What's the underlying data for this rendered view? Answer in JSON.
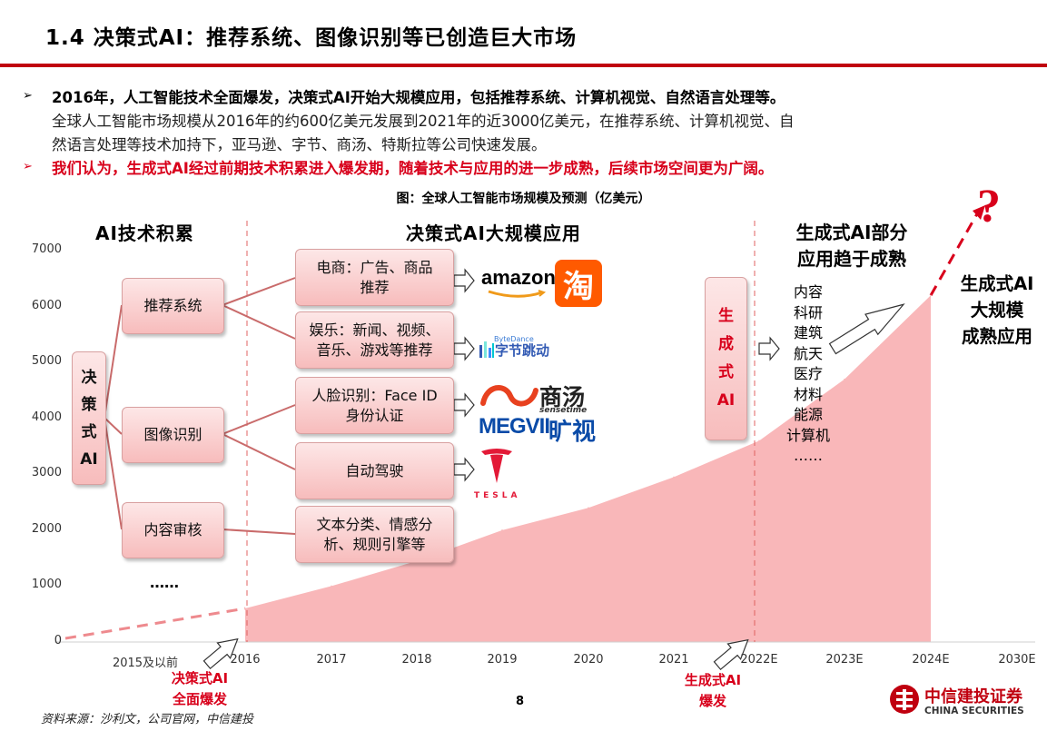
{
  "header": {
    "title": "1.4 决策式AI：推荐系统、图像识别等已创造巨大市场"
  },
  "bullets": {
    "b1_bold": "2016年，人工智能技术全面爆发，决策式AI开始大规模应用，包括推荐系统、计算机视觉、自然语言处理等。",
    "b1_line2": "全球人工智能市场规模从2016年的约600亿美元发展到2021年的近3000亿美元，在推荐系统、计算机视觉、自",
    "b1_line3": "然语言处理等技术加持下，亚马逊、字节、商汤、特斯拉等公司快速发展。",
    "b2_red": "我们认为，生成式AI经过前期技术积累进入爆发期，随着技术与应用的进一步成熟，后续市场空间更为广阔。",
    "marker": "➢"
  },
  "chart_caption": "图：全球人工智能市场规模及预测（亿美元）",
  "chart_data": {
    "type": "area",
    "categories": [
      "2015及以前",
      "2016",
      "2017",
      "2018",
      "2019",
      "2020",
      "2021",
      "2022E",
      "2023E",
      "2024E",
      "2030E"
    ],
    "values": [
      0,
      600,
      1000,
      1450,
      2000,
      2400,
      2950,
      3600,
      4700,
      6200,
      null
    ],
    "yticks": [
      0,
      1000,
      2000,
      3000,
      4000,
      5000,
      6000,
      7000
    ],
    "ylim": [
      0,
      7000
    ]
  },
  "headings": {
    "ai_accum": "AI技术积累",
    "decision_scale": "决策式AI大规模应用",
    "gen_partial_1": "生成式AI部分",
    "gen_partial_2": "应用趋于成熟",
    "gen_mature_1": "生成式AI",
    "gen_mature_2": "大规模",
    "gen_mature_3": "成熟应用"
  },
  "boxes": {
    "decision_ai": [
      "决",
      "策",
      "式",
      "AI"
    ],
    "recommend": "推荐系统",
    "image": "图像识别",
    "content": "内容审核",
    "ellipsis": "……",
    "ecommerce_1": "电商：广告、商品",
    "ecommerce_2": "推荐",
    "entertainment_1": "娱乐：新闻、视频、",
    "entertainment_2": "音乐、游戏等推荐",
    "face_1": "人脸识别：Face ID",
    "face_2": "身份认证",
    "autodrive": "自动驾驶",
    "text_1": "文本分类、情感分",
    "text_2": "析、规则引擎等",
    "gen_ai": [
      "生",
      "成",
      "式",
      "AI"
    ]
  },
  "gen_list": [
    "内容",
    "科研",
    "建筑",
    "航天",
    "医疗",
    "材料",
    "能源",
    "计算机",
    "……"
  ],
  "logos": {
    "amazon": "amazon",
    "taobao": "淘",
    "bytedance_small": "ByteDance",
    "bytedance": "字节跳动",
    "sensetime_cn": "商汤",
    "sensetime_en": "sensetime",
    "megvii": "MEGVII",
    "megvii_cn": "旷视",
    "tesla": "TESLA",
    "question": "?"
  },
  "notes": {
    "decision_burst_1": "决策式AI",
    "decision_burst_2": "全面爆发",
    "gen_burst_1": "生成式AI",
    "gen_burst_2": "爆发"
  },
  "footer": {
    "source": "资料来源：沙利文，公司官网，中信建投",
    "page": "8",
    "brand_cn": "中信建投证券",
    "brand_en": "CHINA SECURITIES"
  },
  "colors": {
    "accent": "#c0000f",
    "area": "#f9b7b9",
    "box": "#f7bcbc",
    "red_text": "#d8001b"
  }
}
